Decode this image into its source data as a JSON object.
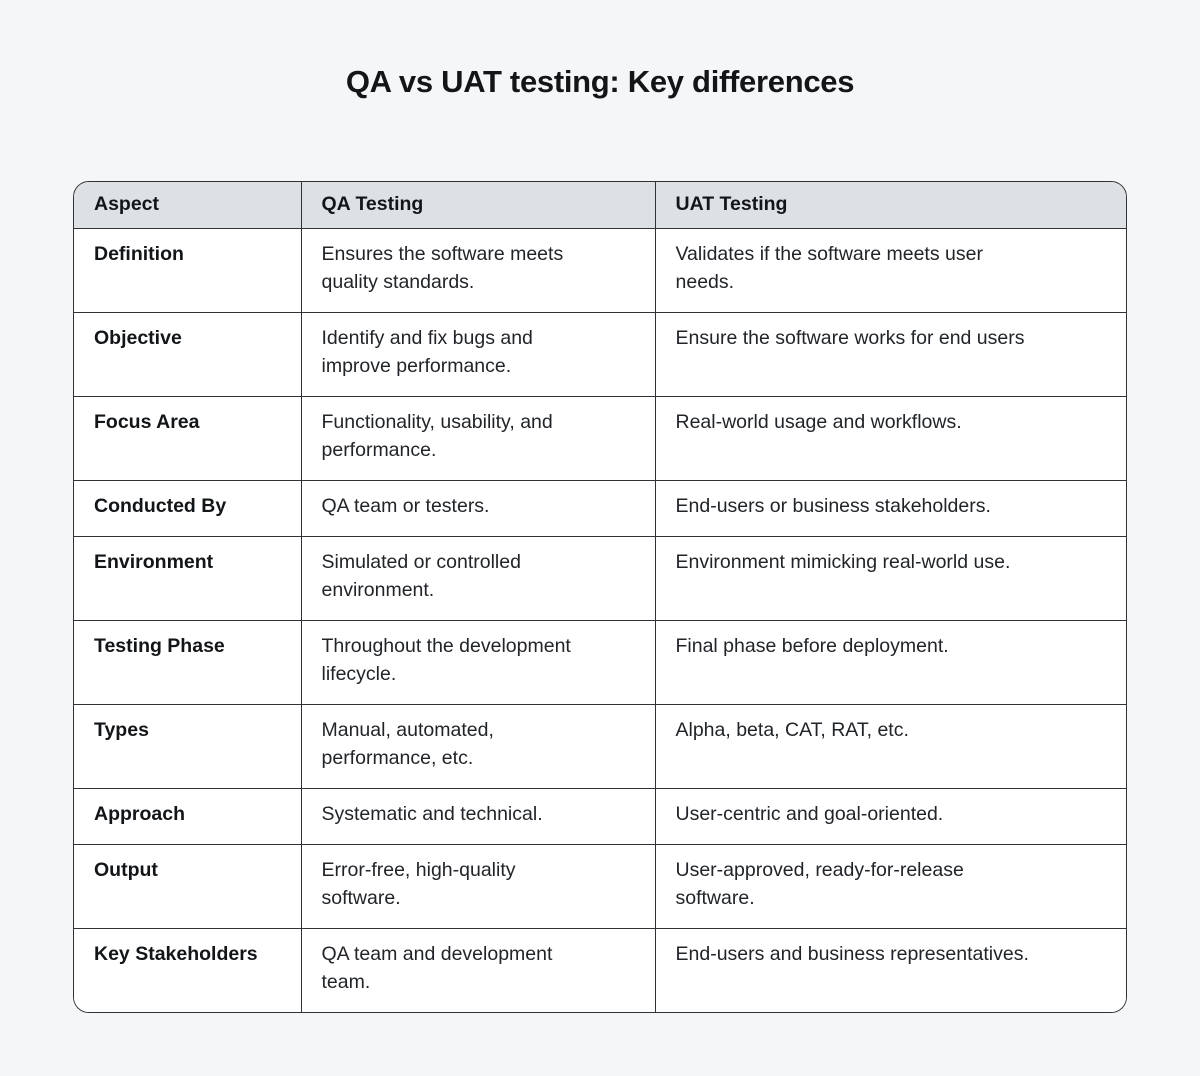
{
  "page": {
    "title": "QA vs UAT testing: Key differences",
    "background_color": "#f4f6f8"
  },
  "table": {
    "columns": [
      "Aspect",
      "QA Testing",
      "UAT Testing"
    ],
    "rows": [
      {
        "aspect": "Definition",
        "qa": "Ensures the software meets\nquality standards.",
        "uat": "Validates if the software meets user\nneeds."
      },
      {
        "aspect": "Objective",
        "qa": "Identify and fix bugs and\nimprove performance.",
        "uat": "Ensure the software works for end users"
      },
      {
        "aspect": "Focus Area",
        "qa": "Functionality, usability, and\nperformance.",
        "uat": "Real-world usage and workflows."
      },
      {
        "aspect": "Conducted By",
        "qa": "QA team or testers.",
        "uat": "End-users or business stakeholders."
      },
      {
        "aspect": "Environment",
        "qa": "Simulated or controlled\nenvironment.",
        "uat": "Environment mimicking real-world use."
      },
      {
        "aspect": "Testing Phase",
        "qa": "Throughout the development\nlifecycle.",
        "uat": "Final phase before deployment."
      },
      {
        "aspect": "Types",
        "qa": "Manual, automated,\nperformance, etc.",
        "uat": "Alpha, beta, CAT, RAT, etc."
      },
      {
        "aspect": "Approach",
        "qa": "Systematic and technical.",
        "uat": "User-centric and goal-oriented."
      },
      {
        "aspect": "Output",
        "qa": "Error-free, high-quality\nsoftware.",
        "uat": "User-approved, ready-for-release\nsoftware."
      },
      {
        "aspect": "Key Stakeholders",
        "qa": "QA team and development\nteam.",
        "uat": "End-users and business representatives."
      }
    ],
    "colors": {
      "page_bg": "#f4f6f8",
      "header_bg": "#dee1e3",
      "row_bg": "#ffffff",
      "border_color": "#2f3338",
      "text_color": "#212529",
      "heading_color": "#131619"
    }
  }
}
